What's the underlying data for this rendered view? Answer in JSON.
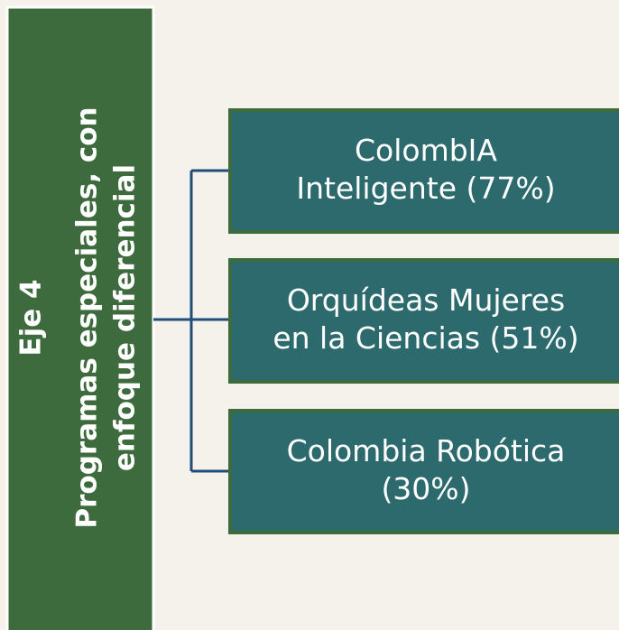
{
  "side_panel": {
    "heading": "Eje 4",
    "title_lines": [
      "Programas especiales, con",
      "enfoque diferencial"
    ]
  },
  "nodes": [
    {
      "label_lines": [
        "ColombIA",
        "Inteligente (77%)"
      ]
    },
    {
      "label_lines": [
        "Orquídeas Mujeres",
        "en la Ciencias (51%)"
      ]
    },
    {
      "label_lines": [
        "Colombia Robótica",
        "(30%)"
      ]
    }
  ]
}
